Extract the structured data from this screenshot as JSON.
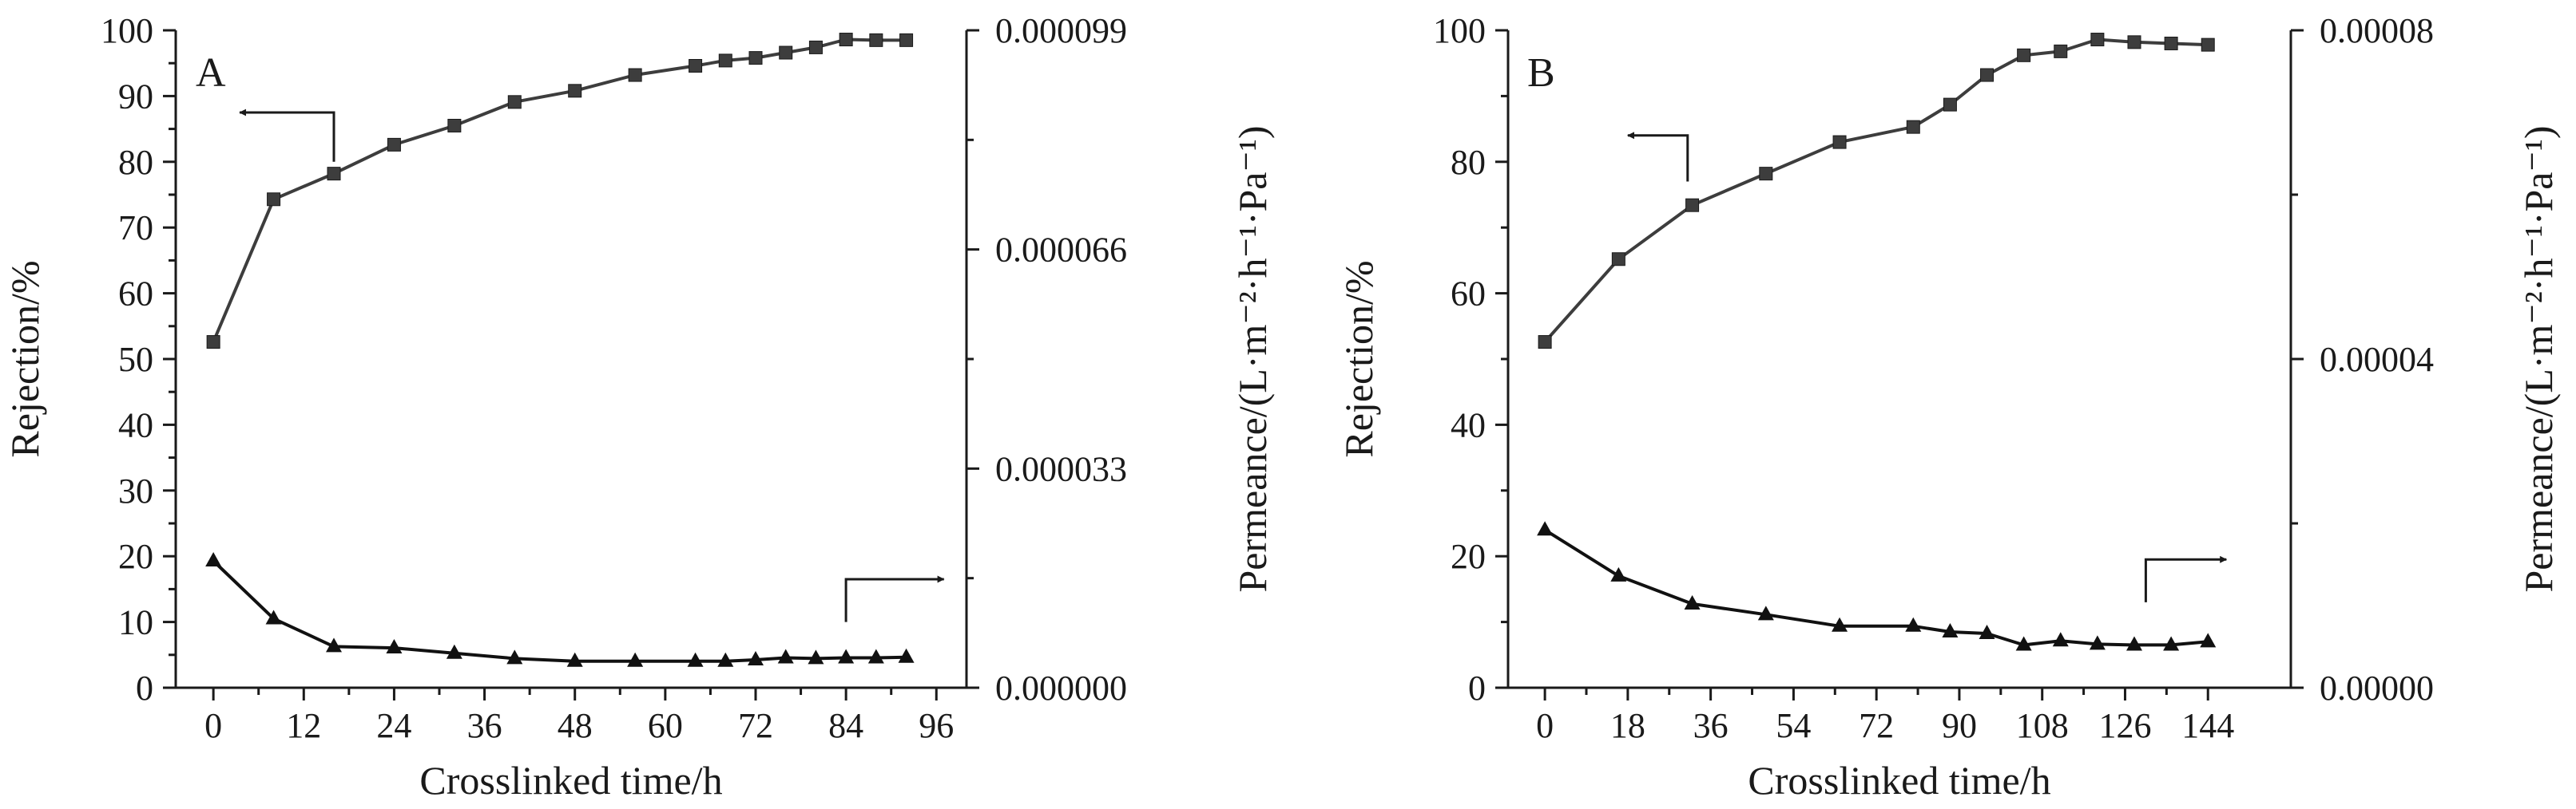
{
  "colors": {
    "axis": "#1a1a1a",
    "rejection_series": "#3d3d3d",
    "permeance_series": "#111111"
  },
  "chart_data": [
    {
      "panel": "A",
      "type": "line",
      "xlabel": "Crosslinked time/h",
      "ylabel_left": "Rejection/%",
      "ylabel_right": "Permeance/(L·m⁻²·h⁻¹·Pa⁻¹)",
      "xlim": [
        -5,
        100
      ],
      "x_ticks": [
        0,
        12,
        24,
        36,
        48,
        60,
        72,
        84,
        96
      ],
      "x_tick_labels": [
        "0",
        "12",
        "24",
        "36",
        "48",
        "60",
        "72",
        "84",
        "96"
      ],
      "ylim_left": [
        0,
        100
      ],
      "y_ticks_left": [
        0,
        10,
        20,
        30,
        40,
        50,
        60,
        70,
        80,
        90,
        100
      ],
      "y_tick_labels_left": [
        "0",
        "10",
        "20",
        "30",
        "40",
        "50",
        "60",
        "70",
        "80",
        "90",
        "100"
      ],
      "ylim_right": [
        0,
        9.9e-05
      ],
      "y_ticks_right": [
        0,
        3.3e-05,
        6.6e-05,
        9.9e-05
      ],
      "y_tick_labels_right": [
        "0.000000",
        "0.000033",
        "0.000066",
        "0.000099"
      ],
      "grid": false,
      "series": [
        {
          "axis": "left",
          "marker": "square",
          "x": [
            0,
            8,
            16,
            24,
            32,
            40,
            48,
            56,
            64,
            68,
            72,
            76,
            80,
            84,
            88,
            92
          ],
          "values": [
            52.6,
            74.3,
            78.2,
            82.6,
            85.5,
            89.1,
            90.8,
            93.2,
            94.6,
            95.4,
            95.8,
            96.6,
            97.4,
            98.6,
            98.5,
            98.5
          ]
        },
        {
          "axis": "right",
          "marker": "triangle",
          "x": [
            0,
            8,
            16,
            24,
            32,
            40,
            48,
            56,
            64,
            68,
            72,
            76,
            80,
            84,
            88,
            92
          ],
          "values": [
            1.91e-05,
            1.04e-05,
            6.2e-06,
            6e-06,
            5.2e-06,
            4.4e-06,
            4e-06,
            4e-06,
            4e-06,
            4e-06,
            4.2e-06,
            4.5e-06,
            4.4e-06,
            4.5e-06,
            4.5e-06,
            4.6e-06
          ]
        }
      ],
      "annotations": [
        {
          "type": "arrow",
          "direction": "left",
          "target_axis": "left",
          "corner": [
            16,
            80
          ],
          "tip": [
            3.5,
            87.5
          ]
        },
        {
          "type": "arrow",
          "direction": "right",
          "target_axis": "right",
          "corner": [
            84,
            10
          ],
          "tip": [
            97,
            16.5
          ]
        }
      ]
    },
    {
      "panel": "B",
      "type": "line",
      "xlabel": "Crosslinked time/h",
      "ylabel_left": "Rejection/%",
      "ylabel_right": "Permeance/(L·m⁻²·h⁻¹·Pa⁻¹)",
      "xlim": [
        -8,
        162
      ],
      "x_ticks": [
        0,
        18,
        36,
        54,
        72,
        90,
        108,
        126,
        144
      ],
      "x_tick_labels": [
        "0",
        "18",
        "36",
        "54",
        "72",
        "90",
        "108",
        "126",
        "144"
      ],
      "ylim_left": [
        0,
        100
      ],
      "y_ticks_left": [
        0,
        20,
        40,
        60,
        80,
        100
      ],
      "y_tick_labels_left": [
        "0",
        "20",
        "40",
        "60",
        "80",
        "100"
      ],
      "ylim_right": [
        0,
        8e-05
      ],
      "y_ticks_right": [
        0,
        4e-05,
        8e-05
      ],
      "y_tick_labels_right": [
        "0.00000",
        "0.00004",
        "0.00008"
      ],
      "grid": false,
      "series": [
        {
          "axis": "left",
          "marker": "square",
          "x": [
            0,
            16,
            32,
            48,
            64,
            80,
            88,
            96,
            104,
            112,
            120,
            128,
            136,
            144
          ],
          "values": [
            52.6,
            65.2,
            73.4,
            78.2,
            83.0,
            85.3,
            88.7,
            93.2,
            96.2,
            96.8,
            98.6,
            98.2,
            98.0,
            97.8
          ]
        },
        {
          "axis": "right",
          "marker": "triangle",
          "x": [
            0,
            16,
            32,
            48,
            64,
            80,
            88,
            96,
            104,
            112,
            120,
            128,
            136,
            144
          ],
          "values": [
            1.92e-05,
            1.36e-05,
            1.02e-05,
            8.9e-06,
            7.5e-06,
            7.5e-06,
            6.8e-06,
            6.6e-06,
            5.2e-06,
            5.7e-06,
            5.3e-06,
            5.2e-06,
            5.2e-06,
            5.6e-06
          ]
        }
      ],
      "annotations": [
        {
          "type": "arrow",
          "direction": "left",
          "target_axis": "left",
          "corner": [
            31,
            77
          ],
          "tip": [
            18,
            84
          ]
        },
        {
          "type": "arrow",
          "direction": "right",
          "target_axis": "right",
          "corner": [
            130.5,
            13
          ],
          "tip": [
            148,
            19.5
          ]
        }
      ]
    }
  ]
}
